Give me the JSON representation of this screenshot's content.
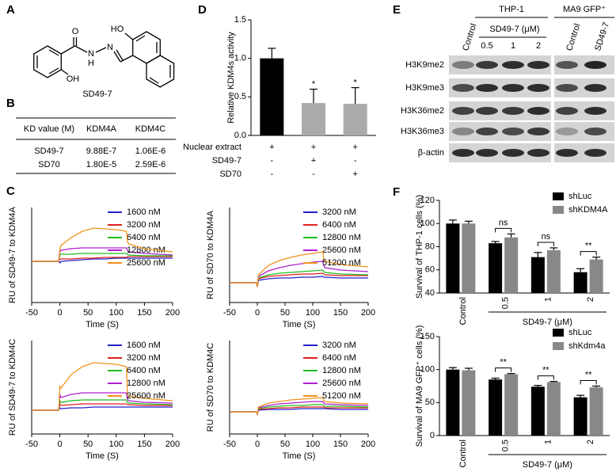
{
  "panel_labels": [
    "A",
    "B",
    "C",
    "D",
    "E",
    "F"
  ],
  "structure": {
    "atoms": [
      "O",
      "N",
      "H",
      "N",
      "HO",
      "OH"
    ],
    "name": "SD49-7"
  },
  "table": {
    "header": [
      "KD value (M)",
      "KDM4A",
      "KDM4C"
    ],
    "rows": [
      [
        "SD49-7",
        "9.88E-7",
        "1.06E-6"
      ],
      [
        "SD70",
        "1.80E-5",
        "2.59E-6"
      ]
    ]
  },
  "blot": {
    "cell_lines": [
      "THP-1",
      "MA9 GFP⁺"
    ],
    "treatment_label": "SD49-7 (μM)",
    "lanes": [
      "Control",
      "0.5",
      "1",
      "2",
      "Control",
      "SD49-7"
    ],
    "proteins": [
      "H3K9me2",
      "H3K9me3",
      "H3K36me2",
      "H3K36me3",
      "β-actin"
    ]
  },
  "chart_data": [
    {
      "type": "line",
      "xlabel": "Time (S)",
      "ylabel": "RU of SD49-7 to KDM4A",
      "x": [
        -50,
        -2,
        0,
        2,
        20,
        40,
        60,
        80,
        100,
        118,
        120,
        122,
        150,
        200
      ],
      "xlim": [
        -50,
        200
      ],
      "xticks": [
        -50,
        0,
        50,
        100,
        150,
        200
      ],
      "ylim": [
        -52,
        68
      ],
      "legend": "upper right",
      "series": [
        {
          "name": "1600 nM",
          "color": "#2222cc",
          "values": [
            0,
            0,
            -2,
            0,
            1,
            2,
            3,
            3,
            4,
            4,
            4,
            4,
            4,
            4
          ]
        },
        {
          "name": "3200 nM",
          "color": "#e02020",
          "values": [
            0,
            0,
            3,
            3,
            3,
            4,
            4,
            5,
            5,
            5,
            6,
            6,
            6,
            6
          ]
        },
        {
          "name": "6400 nM",
          "color": "#22bb22",
          "values": [
            0,
            0,
            8,
            9,
            9,
            10,
            10,
            10,
            10,
            10,
            9,
            8,
            7,
            7
          ]
        },
        {
          "name": "12800 nM",
          "color": "#b020d0",
          "values": [
            0,
            0,
            12,
            14,
            16,
            17,
            17,
            17,
            17,
            17,
            14,
            12,
            10,
            8
          ]
        },
        {
          "name": "25600 nM",
          "color": "#f0921c",
          "values": [
            0,
            0,
            15,
            20,
            30,
            38,
            42,
            41,
            40,
            38,
            25,
            22,
            16,
            12
          ]
        }
      ]
    },
    {
      "type": "line",
      "xlabel": "Time (S)",
      "ylabel": "RU of SD70 to KDM4A",
      "x": [
        -50,
        -2,
        0,
        2,
        20,
        40,
        60,
        80,
        100,
        118,
        120,
        122,
        150,
        200
      ],
      "xlim": [
        -50,
        200
      ],
      "xticks": [
        -50,
        0,
        50,
        100,
        150,
        200
      ],
      "ylim": [
        -25,
        95
      ],
      "legend": "upper right",
      "series": [
        {
          "name": "3200 nM",
          "color": "#2222cc",
          "values": [
            0,
            0,
            -5,
            3,
            5,
            6,
            6,
            7,
            7,
            8,
            7,
            7,
            6,
            6
          ]
        },
        {
          "name": "6400 nM",
          "color": "#e02020",
          "values": [
            0,
            0,
            -5,
            5,
            8,
            9,
            10,
            11,
            11,
            12,
            11,
            10,
            9,
            9
          ]
        },
        {
          "name": "12800 nM",
          "color": "#22bb22",
          "values": [
            0,
            0,
            -5,
            6,
            10,
            12,
            13,
            14,
            15,
            16,
            14,
            13,
            11,
            10
          ]
        },
        {
          "name": "25600 nM",
          "color": "#b020d0",
          "values": [
            0,
            0,
            -5,
            8,
            15,
            19,
            22,
            24,
            26,
            27,
            22,
            19,
            16,
            14
          ]
        },
        {
          "name": "51200 nM",
          "color": "#f0921c",
          "values": [
            0,
            0,
            -5,
            10,
            22,
            28,
            32,
            35,
            37,
            39,
            30,
            27,
            23,
            20
          ]
        }
      ]
    },
    {
      "type": "line",
      "xlabel": "Time (S)",
      "ylabel": "RU of SD49-7 to KDM4C",
      "x": [
        -50,
        -2,
        0,
        2,
        20,
        40,
        60,
        80,
        100,
        118,
        120,
        122,
        150,
        200
      ],
      "xlim": [
        -50,
        200
      ],
      "xticks": [
        -50,
        0,
        50,
        100,
        150,
        200
      ],
      "ylim": [
        -30,
        88
      ],
      "legend": "upper right",
      "series": [
        {
          "name": "1600 nM",
          "color": "#2222cc",
          "values": [
            0,
            0,
            3,
            2,
            3,
            3,
            4,
            4,
            4,
            4,
            4,
            4,
            4,
            4
          ]
        },
        {
          "name": "3200 nM",
          "color": "#e02020",
          "values": [
            0,
            0,
            8,
            6,
            7,
            8,
            8,
            8,
            8,
            8,
            7,
            7,
            6,
            6
          ]
        },
        {
          "name": "6400 nM",
          "color": "#22bb22",
          "values": [
            0,
            0,
            12,
            10,
            12,
            13,
            13,
            13,
            13,
            13,
            10,
            9,
            8,
            7
          ]
        },
        {
          "name": "12800 nM",
          "color": "#b020d0",
          "values": [
            0,
            0,
            20,
            16,
            20,
            22,
            22,
            22,
            22,
            22,
            14,
            12,
            10,
            9
          ]
        },
        {
          "name": "25600 nM",
          "color": "#f0921c",
          "values": [
            0,
            0,
            30,
            28,
            45,
            55,
            60,
            59,
            58,
            55,
            20,
            18,
            15,
            12
          ]
        }
      ]
    },
    {
      "type": "line",
      "xlabel": "Time (S)",
      "ylabel": "RU of SD70 to KDM4C",
      "x": [
        -50,
        -2,
        0,
        2,
        20,
        40,
        60,
        80,
        100,
        118,
        120,
        122,
        150,
        200
      ],
      "xlim": [
        -50,
        200
      ],
      "xticks": [
        -50,
        0,
        50,
        100,
        150,
        200
      ],
      "ylim": [
        -28,
        90
      ],
      "legend": "upper right",
      "series": [
        {
          "name": "3200 nM",
          "color": "#2222cc",
          "values": [
            0,
            0,
            -3,
            2,
            3,
            3,
            3,
            4,
            4,
            4,
            4,
            4,
            3,
            3
          ]
        },
        {
          "name": "6400 nM",
          "color": "#e02020",
          "values": [
            0,
            0,
            -3,
            3,
            4,
            5,
            5,
            6,
            6,
            6,
            6,
            5,
            5,
            5
          ]
        },
        {
          "name": "12800 nM",
          "color": "#22bb22",
          "values": [
            0,
            0,
            -3,
            4,
            6,
            7,
            8,
            8,
            9,
            9,
            8,
            7,
            7,
            6
          ]
        },
        {
          "name": "25600 nM",
          "color": "#b020d0",
          "values": [
            0,
            0,
            -3,
            5,
            8,
            10,
            11,
            12,
            13,
            13,
            11,
            10,
            9,
            8
          ]
        },
        {
          "name": "51200 nM",
          "color": "#f0921c",
          "values": [
            0,
            0,
            -3,
            6,
            11,
            13,
            15,
            16,
            17,
            18,
            14,
            13,
            11,
            10
          ]
        }
      ]
    },
    {
      "type": "bar",
      "ylabel": "Relative KDM4s activity",
      "values": [
        1.0,
        0.42,
        0.41
      ],
      "errors": [
        0.13,
        0.18,
        0.21
      ],
      "colors": [
        "#000000",
        "#aaaaaa",
        "#aaaaaa"
      ],
      "significance": [
        null,
        "*",
        "*"
      ],
      "ylim": [
        0,
        1.5
      ],
      "yticks": [
        {
          "value": 0,
          "label": "0.0"
        },
        0.5,
        {
          "value": 1,
          "label": "1.0"
        },
        1.5
      ],
      "treatments": [
        {
          "name": "Nuclear extract",
          "signs": [
            "+",
            "+",
            "+"
          ]
        },
        {
          "name": "SD49-7",
          "signs": [
            "-",
            "+",
            "-"
          ]
        },
        {
          "name": "SD70",
          "signs": [
            "-",
            "-",
            "+"
          ]
        }
      ]
    },
    {
      "type": "grouped_bar",
      "ylabel": "Survival of THP-1 cells (%)",
      "xlabel": "SD49-7 (μM)",
      "categories": [
        "Control",
        "0.5",
        "1",
        "2"
      ],
      "ylim": [
        40,
        120
      ],
      "yticks": [
        40,
        60,
        80,
        100,
        120
      ],
      "legend": "upper right",
      "significance": [
        null,
        "ns",
        "ns",
        "**"
      ],
      "series": [
        {
          "name": "shLuc",
          "color": "#000000",
          "values": [
            100,
            83,
            71,
            58
          ],
          "errors": [
            3,
            1.5,
            4,
            3
          ]
        },
        {
          "name": "shKDM4A",
          "color": "#888888",
          "values": [
            100,
            88,
            77,
            69
          ],
          "errors": [
            2,
            3,
            2,
            2
          ]
        }
      ]
    },
    {
      "type": "grouped_bar",
      "ylabel": "Survival of MA9 GFP⁺ cells (%)",
      "xlabel": "SD49-7 (μM)",
      "categories": [
        "Control",
        "0.5",
        "1",
        "2"
      ],
      "ylim": [
        0,
        150
      ],
      "yticks": [
        0,
        50,
        100,
        150
      ],
      "legend": "upper right",
      "significance": [
        null,
        "**",
        "**",
        "**"
      ],
      "series": [
        {
          "name": "shLuc",
          "color": "#000000",
          "values": [
            100,
            85,
            74,
            58
          ],
          "errors": [
            3,
            2,
            2,
            3
          ]
        },
        {
          "name": "shKdm4a",
          "color": "#888888",
          "values": [
            99,
            93,
            81,
            73
          ],
          "errors": [
            3,
            1,
            1,
            2
          ]
        }
      ]
    }
  ]
}
